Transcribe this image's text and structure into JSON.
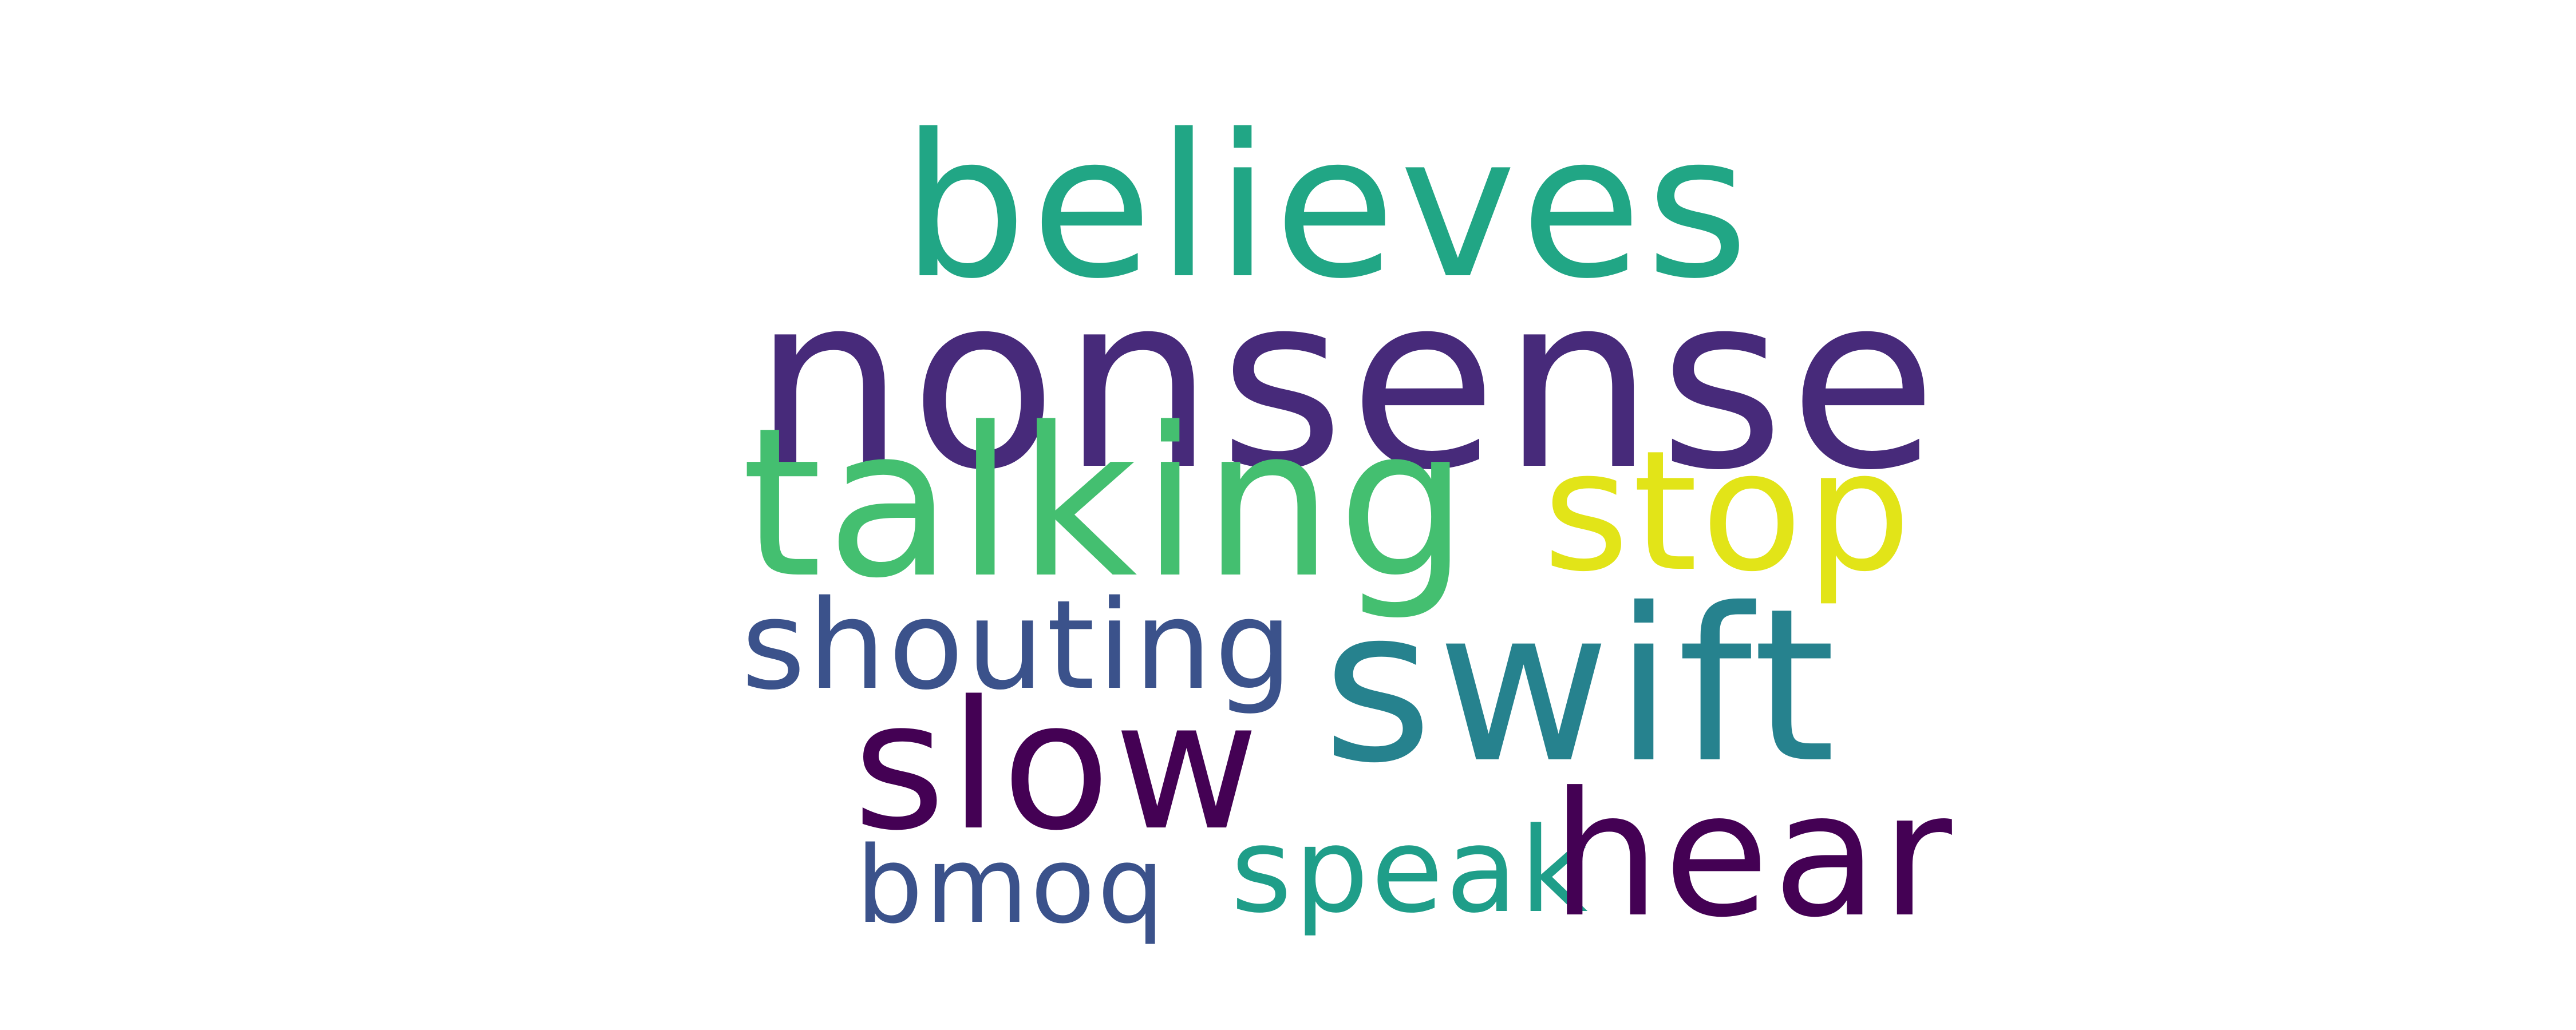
{
  "word_cloud": {
    "words": {
      "believes": {
        "text": "believes",
        "color": "#21a685"
      },
      "nonsense": {
        "text": "nonsense",
        "color": "#472a7a"
      },
      "talking": {
        "text": "talking",
        "color": "#44bf70"
      },
      "stop": {
        "text": "stop",
        "color": "#e2e418"
      },
      "shouting": {
        "text": "shouting",
        "color": "#3b528b"
      },
      "swift": {
        "text": "swift",
        "color": "#26828e"
      },
      "slow": {
        "text": "slow",
        "color": "#440154"
      },
      "speak": {
        "text": "speak",
        "color": "#1f9e89"
      },
      "hear": {
        "text": "hear",
        "color": "#440154"
      },
      "bmoq": {
        "text": "bmoq",
        "color": "#3b528b"
      }
    }
  }
}
